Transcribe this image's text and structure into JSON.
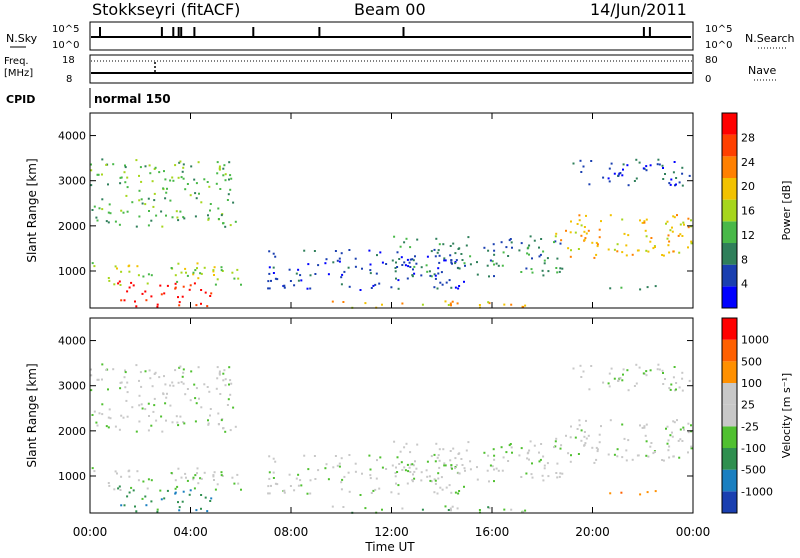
{
  "header": {
    "station": "Stokkseyri (fitACF)",
    "beam": "Beam 00",
    "date": "14/Jun/2011"
  },
  "top_panels": {
    "nsky_label": "N.Sky",
    "nsearch_label": "N.Search",
    "nsky_ticks": [
      "10^5",
      "10^0"
    ],
    "freq_label": "Freq.",
    "freq_unit": "[MHz]",
    "freq_ticks": [
      "18",
      "8"
    ],
    "nave_label": "Nave",
    "nave_ticks": [
      "80",
      "0"
    ],
    "cpid_label": "CPID",
    "cpid_value": "normal 150"
  },
  "colors": {
    "power_scale": [
      "#0000ff",
      "#1a3fb0",
      "#2f7f5a",
      "#48b848",
      "#a6d61c",
      "#f2c200",
      "#ff8000",
      "#ff4000",
      "#ff0000"
    ],
    "velocity_scale": [
      "#1a3fb0",
      "#1a7fc0",
      "#2f8f4f",
      "#50c030",
      "#c8c8c8",
      "#c8c8c8",
      "#ff9000",
      "#ff6000",
      "#ff0000"
    ]
  },
  "chart_data": [
    {
      "type": "heatmap",
      "name": "power",
      "ylabel": "Slant Range [km]",
      "xlabel": "",
      "x_ticks": [
        "00:00",
        "04:00",
        "08:00",
        "12:00",
        "16:00",
        "20:00",
        "00:00"
      ],
      "y_ticks": [
        "1000",
        "2000",
        "3000",
        "4000"
      ],
      "ylim": [
        180,
        4500
      ],
      "xlim_hours": [
        0,
        24
      ],
      "colorbar_label": "Power [dB]",
      "colorbar_ticks": [
        "28",
        "24",
        "20",
        "16",
        "12",
        "8",
        "4"
      ],
      "regions": [
        {
          "x0": 0.0,
          "x1": 5.8,
          "y0": 2000,
          "y1": 3500,
          "level": 3
        },
        {
          "x0": 0.0,
          "x1": 6.0,
          "y0": 700,
          "y1": 1200,
          "level": 4
        },
        {
          "x0": 1.0,
          "x1": 4.8,
          "y0": 200,
          "y1": 800,
          "level": 8
        },
        {
          "x0": 7.0,
          "x1": 15.0,
          "y0": 600,
          "y1": 1500,
          "level": 1
        },
        {
          "x0": 9.5,
          "x1": 18.5,
          "y0": 200,
          "y1": 350,
          "level": 5
        },
        {
          "x0": 12.0,
          "x1": 18.8,
          "y0": 900,
          "y1": 1800,
          "level": 2
        },
        {
          "x0": 18.5,
          "x1": 24.0,
          "y0": 1300,
          "y1": 2300,
          "level": 5
        },
        {
          "x0": 19.0,
          "x1": 24.0,
          "y0": 2900,
          "y1": 3500,
          "level": 1
        },
        {
          "x0": 20.5,
          "x1": 22.5,
          "y0": 550,
          "y1": 700,
          "level": 2
        }
      ]
    },
    {
      "type": "heatmap",
      "name": "velocity",
      "xlabel": "Time UT",
      "ylabel": "Slant Range [km]",
      "x_ticks": [
        "00:00",
        "04:00",
        "08:00",
        "12:00",
        "16:00",
        "20:00",
        "00:00"
      ],
      "y_ticks": [
        "1000",
        "2000",
        "3000",
        "4000"
      ],
      "ylim": [
        180,
        4500
      ],
      "xlim_hours": [
        0,
        24
      ],
      "colorbar_label": "Velocity [m s⁻¹]",
      "colorbar_ticks": [
        "1000",
        "500",
        "100",
        "25",
        "-25",
        "-100",
        "-500",
        "-1000"
      ],
      "regions": [
        {
          "x0": 0.0,
          "x1": 5.8,
          "y0": 2000,
          "y1": 3500,
          "level": 4
        },
        {
          "x0": 0.0,
          "x1": 6.0,
          "y0": 700,
          "y1": 1200,
          "level": 4
        },
        {
          "x0": 1.0,
          "x1": 4.8,
          "y0": 200,
          "y1": 800,
          "level": 2
        },
        {
          "x0": 7.0,
          "x1": 15.0,
          "y0": 600,
          "y1": 1500,
          "level": 4
        },
        {
          "x0": 9.5,
          "x1": 18.5,
          "y0": 200,
          "y1": 350,
          "level": 3
        },
        {
          "x0": 12.0,
          "x1": 18.8,
          "y0": 900,
          "y1": 1800,
          "level": 4
        },
        {
          "x0": 18.5,
          "x1": 24.0,
          "y0": 1300,
          "y1": 2300,
          "level": 4
        },
        {
          "x0": 19.0,
          "x1": 24.0,
          "y0": 2900,
          "y1": 3500,
          "level": 4
        },
        {
          "x0": 20.5,
          "x1": 22.5,
          "y0": 550,
          "y1": 700,
          "level": 6
        }
      ]
    }
  ]
}
